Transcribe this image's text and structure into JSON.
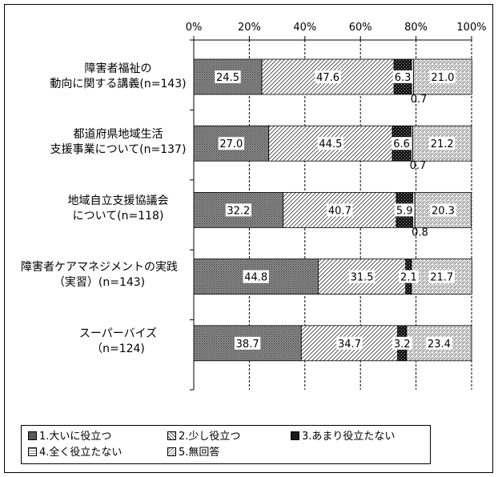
{
  "chart_data": {
    "type": "bar",
    "orientation": "horizontal",
    "stacked": true,
    "categories": [
      [
        "障害者福祉の",
        "動向に関する講義(n=143)"
      ],
      [
        "都道府県地域生活",
        "支援事業について(n=137)"
      ],
      [
        "地域自立支援協議会",
        "について(n=118)"
      ],
      [
        "障害者ケアマネジメントの実践",
        "（実習）(n=143)"
      ],
      [
        "スーパーバイズ",
        "（n=124)"
      ]
    ],
    "series": [
      {
        "name": "1.大いに役立つ",
        "values": [
          24.5,
          27.0,
          32.2,
          44.8,
          38.7
        ]
      },
      {
        "name": "2.少し役立つ",
        "values": [
          47.6,
          44.5,
          40.7,
          31.5,
          34.7
        ]
      },
      {
        "name": "3.あまり役立たない",
        "values": [
          6.3,
          6.6,
          5.9,
          2.1,
          3.2
        ]
      },
      {
        "name": "4.全く役立たない",
        "values": [
          0.7,
          0.7,
          0.8,
          0.0,
          0.0
        ]
      },
      {
        "name": "5.無回答",
        "values": [
          21.0,
          21.2,
          20.3,
          21.7,
          23.4
        ]
      }
    ],
    "value_labels": [
      [
        "24.5",
        "47.6",
        "6.3",
        "0.7",
        "21.0"
      ],
      [
        "27.0",
        "44.5",
        "6.6",
        "0.7",
        "21.2"
      ],
      [
        "32.2",
        "40.7",
        "5.9",
        "0.8",
        "20.3"
      ],
      [
        "44.8",
        "31.5",
        "2.1",
        "",
        "21.7"
      ],
      [
        "38.7",
        "34.7",
        "3.2",
        "",
        "23.4"
      ]
    ],
    "xlim": [
      0,
      100
    ],
    "xticks": [
      "0%",
      "20%",
      "40%",
      "60%",
      "80%",
      "100%"
    ],
    "grid": true,
    "legend_position": "bottom"
  },
  "colors": {
    "series1_fill": "#8a8a8a",
    "background": "#ffffff",
    "line": "#000000"
  },
  "legend": {
    "item1": "1.大いに役立つ",
    "item2": "2.少し役立つ",
    "item3": "3.あまり役立たない",
    "item4": "4.全く役立たない",
    "item5": "5.無回答"
  }
}
